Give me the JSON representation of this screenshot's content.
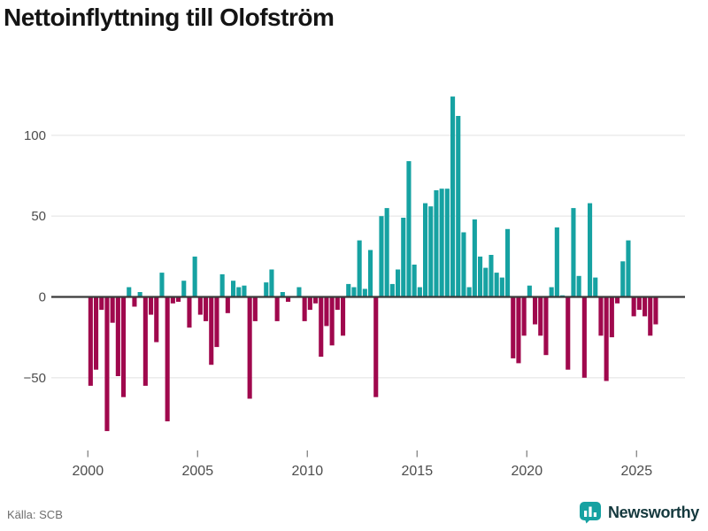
{
  "header": {
    "title": "Nettoinflyttning till Olofström"
  },
  "footer": {
    "source": "Källa: SCB",
    "brand": "Newsworthy"
  },
  "colors": {
    "positive": "#16a2a2",
    "negative": "#a0084d",
    "zero_line": "#3a3a3a",
    "grid": "#e9e9e9",
    "label": "#4d4d4d",
    "brand_teal": "#16a2a2",
    "brand_text": "#15393e"
  },
  "chart_data": {
    "type": "bar",
    "title": "Nettoinflyttning till Olofström",
    "xlabel": "",
    "ylabel": "",
    "interval": "quarterly",
    "grid": "horizontal",
    "legend": "none",
    "ylim": [
      -95,
      135
    ],
    "yticks": [
      {
        "label": "100",
        "value": 100
      },
      {
        "label": "50",
        "value": 50
      },
      {
        "label": "0",
        "value": 0
      },
      {
        "label": "−50",
        "value": -50
      }
    ],
    "xticks": [
      2000,
      2005,
      2010,
      2015,
      2020,
      2025
    ],
    "series": [
      {
        "year": 2000,
        "values": [
          -55,
          -45,
          -8,
          -83
        ]
      },
      {
        "year": 2001,
        "values": [
          -16,
          -49,
          -62,
          6
        ]
      },
      {
        "year": 2002,
        "values": [
          -6,
          3,
          -55,
          -11
        ]
      },
      {
        "year": 2003,
        "values": [
          -28,
          15,
          -77,
          -4
        ]
      },
      {
        "year": 2004,
        "values": [
          -3,
          10,
          -19,
          25
        ]
      },
      {
        "year": 2005,
        "values": [
          -11,
          -15,
          -42,
          -31
        ]
      },
      {
        "year": 2006,
        "values": [
          14,
          -10,
          10,
          6
        ]
      },
      {
        "year": 2007,
        "values": [
          7,
          -63,
          -15,
          0
        ]
      },
      {
        "year": 2008,
        "values": [
          9,
          17,
          -15,
          3
        ]
      },
      {
        "year": 2009,
        "values": [
          -3,
          0,
          6,
          -15
        ]
      },
      {
        "year": 2010,
        "values": [
          -8,
          -4,
          -37,
          -18
        ]
      },
      {
        "year": 2011,
        "values": [
          -30,
          -8,
          -24,
          8
        ]
      },
      {
        "year": 2012,
        "values": [
          6,
          35,
          5,
          29
        ]
      },
      {
        "year": 2013,
        "values": [
          -62,
          50,
          55,
          8
        ]
      },
      {
        "year": 2014,
        "values": [
          17,
          49,
          84,
          20
        ]
      },
      {
        "year": 2015,
        "values": [
          6,
          58,
          56,
          66
        ]
      },
      {
        "year": 2016,
        "values": [
          67,
          67,
          124,
          112
        ]
      },
      {
        "year": 2017,
        "values": [
          40,
          6,
          48,
          25
        ]
      },
      {
        "year": 2018,
        "values": [
          18,
          26,
          15,
          12
        ]
      },
      {
        "year": 2019,
        "values": [
          42,
          -38,
          -41,
          -24
        ]
      },
      {
        "year": 2020,
        "values": [
          7,
          -17,
          -24,
          -36
        ]
      },
      {
        "year": 2021,
        "values": [
          6,
          43,
          1,
          -45
        ]
      },
      {
        "year": 2022,
        "values": [
          55,
          13,
          -50,
          58
        ]
      },
      {
        "year": 2023,
        "values": [
          12,
          -24,
          -52,
          -25
        ]
      },
      {
        "year": 2024,
        "values": [
          -4,
          22,
          35,
          -12
        ]
      },
      {
        "year": 2025,
        "values": [
          -8,
          -12,
          -24,
          -17
        ]
      }
    ]
  }
}
